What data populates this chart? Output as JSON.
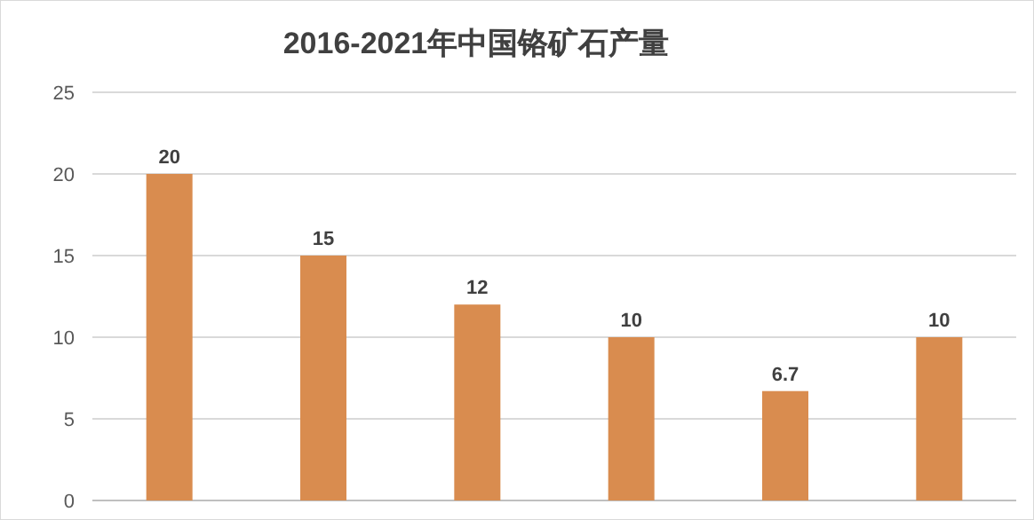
{
  "chart_data": {
    "type": "bar",
    "title": "2016-2021年中国铬矿石产量",
    "categories": [
      null,
      null,
      null,
      null,
      null,
      null
    ],
    "values": [
      20,
      15,
      12,
      10,
      6.7,
      10
    ],
    "color": "#d98c4f",
    "ylim": [
      0,
      25
    ],
    "yticks": [
      0,
      5,
      10,
      15,
      20,
      25
    ],
    "grid": "y",
    "data_labels": true
  }
}
